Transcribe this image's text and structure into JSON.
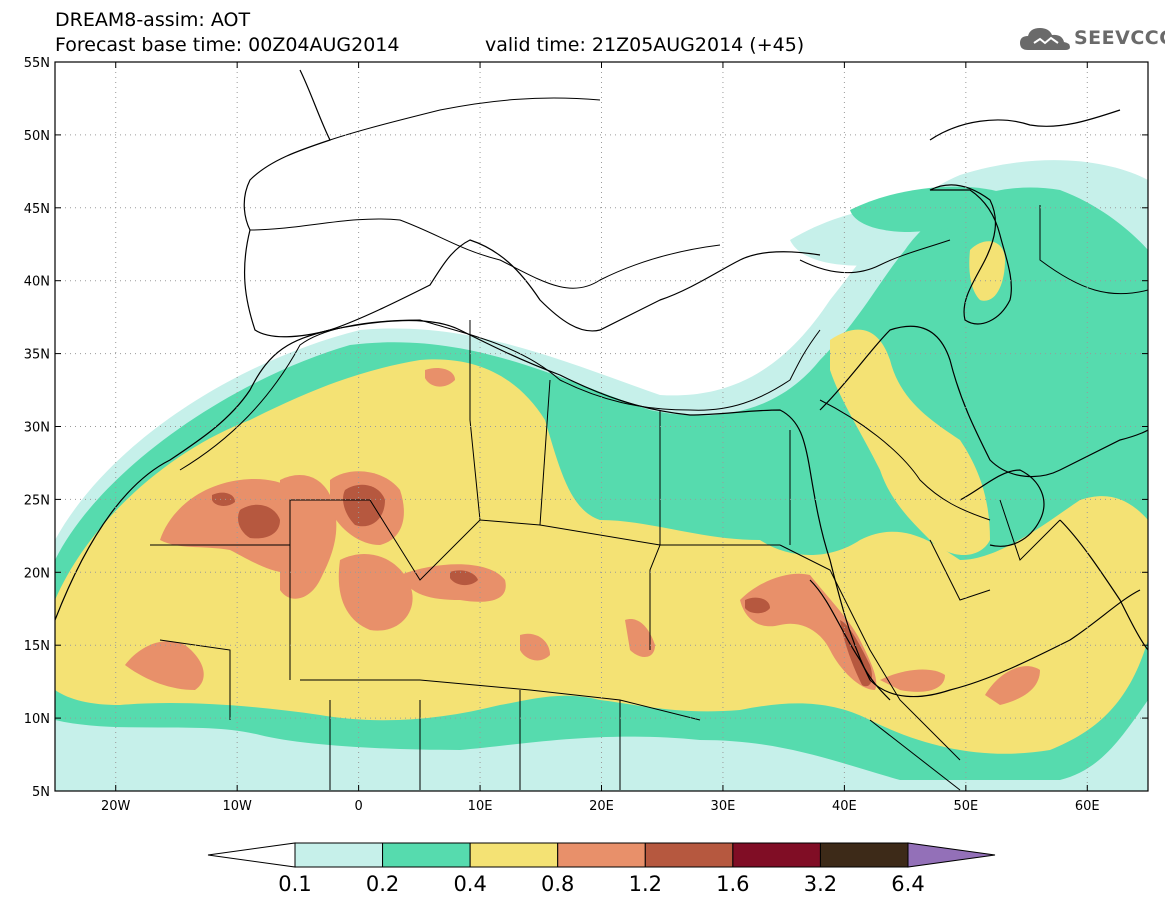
{
  "header": {
    "title_line1": "DREAM8-assim: AOT",
    "title_line2": "Forecast base time: 00Z04AUG2014",
    "valid_time": "valid time: 21Z05AUG2014 (+45)",
    "logo_text": "SEEVCCC",
    "logo_icon": "cloud-icon"
  },
  "map": {
    "lon_range": [
      -25,
      65
    ],
    "lat_range": [
      5,
      55
    ],
    "lat_ticks": [
      {
        "lat": 55,
        "label": "55N"
      },
      {
        "lat": 50,
        "label": "50N"
      },
      {
        "lat": 45,
        "label": "45N"
      },
      {
        "lat": 40,
        "label": "40N"
      },
      {
        "lat": 35,
        "label": "35N"
      },
      {
        "lat": 30,
        "label": "30N"
      },
      {
        "lat": 25,
        "label": "25N"
      },
      {
        "lat": 20,
        "label": "20N"
      },
      {
        "lat": 15,
        "label": "15N"
      },
      {
        "lat": 10,
        "label": "10N"
      },
      {
        "lat": 5,
        "label": "5N"
      }
    ],
    "lon_ticks": [
      {
        "lon": -20,
        "label": "20W"
      },
      {
        "lon": -10,
        "label": "10W"
      },
      {
        "lon": 0,
        "label": "0"
      },
      {
        "lon": 10,
        "label": "10E"
      },
      {
        "lon": 20,
        "label": "20E"
      },
      {
        "lon": 30,
        "label": "30E"
      },
      {
        "lon": 40,
        "label": "40E"
      },
      {
        "lon": 50,
        "label": "50E"
      },
      {
        "lon": 60,
        "label": "60E"
      }
    ]
  },
  "colorbar": {
    "left_arrow_color": "#ffffff",
    "right_arrow_color": "#9370b8",
    "bins": [
      {
        "color": "#c6f0ea"
      },
      {
        "color": "#56dbae"
      },
      {
        "color": "#f4e274"
      },
      {
        "color": "#e8906a"
      },
      {
        "color": "#b6583f"
      },
      {
        "color": "#800d25"
      },
      {
        "color": "#3d2a18"
      }
    ],
    "labels": [
      "0.1",
      "0.2",
      "0.4",
      "0.8",
      "1.2",
      "1.6",
      "3.2",
      "6.4"
    ]
  }
}
